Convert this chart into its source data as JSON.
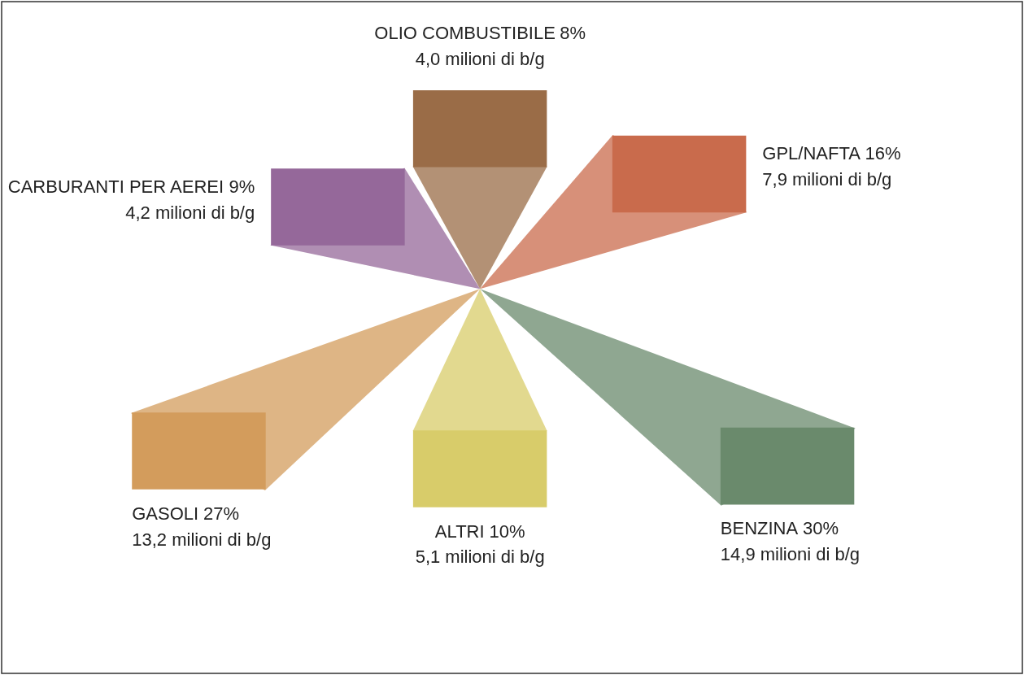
{
  "chart_data": {
    "type": "other",
    "categories": [
      "OLIO COMBUSTIBILE",
      "GPL/NAFTA",
      "BENZINA",
      "ALTRI",
      "GASOLI",
      "CARBURANTI PER AEREI"
    ],
    "colors": [
      "#9a6c47",
      "#c96b4c",
      "#6a8a6c",
      "#d8cc6a",
      "#d39c5c",
      "#95689a"
    ],
    "series": [
      {
        "values": [
          8,
          16,
          30,
          10,
          27,
          9
        ],
        "value_labels": [
          "8%",
          "16%",
          "30%",
          "10%",
          "27%",
          "9%"
        ]
      },
      {
        "values": [
          4.0,
          7.9,
          14.9,
          5.1,
          13.2,
          4.2
        ],
        "value_labels": [
          "4,0 milioni di b/g",
          "7,9 milioni di b/g",
          "14,9 milioni di b/g",
          "5,1 milioni di b/g",
          "13,2 milioni di b/g",
          "4,2 milioni di b/g"
        ]
      }
    ]
  }
}
